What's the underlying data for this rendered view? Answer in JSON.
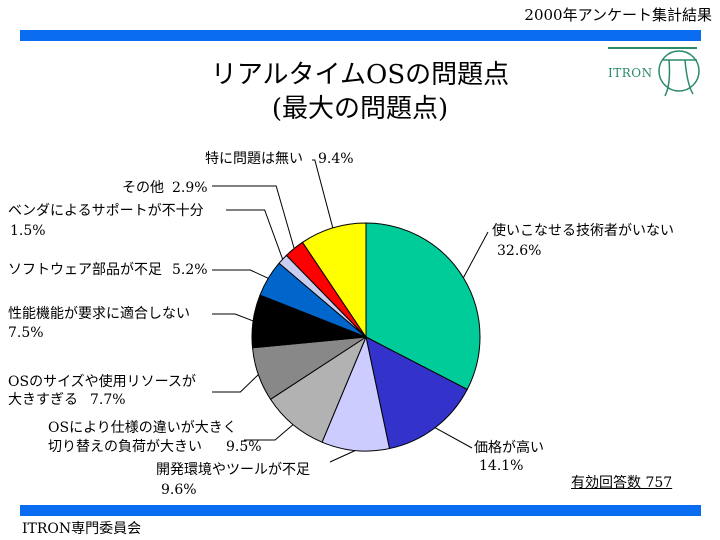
{
  "header": {
    "survey_title": "2000年アンケート集計結果"
  },
  "title": {
    "line1": "リアルタイムOSの問題点",
    "line2": "(最大の問題点)"
  },
  "logo": {
    "text": "ITRON"
  },
  "footer": {
    "committee": "ITRON専門委員会"
  },
  "valid_responses": "有効回答数 757",
  "colors": {
    "bars": "#0a6cf0",
    "logo": "#2a8a6a"
  },
  "chart_data": {
    "type": "pie",
    "start": "12 o'clock",
    "direction": "clockwise",
    "slices": [
      {
        "label": "使いこなせる技術者がいない",
        "value": 32.6,
        "value_text": "32.6%",
        "color": "#00cc99"
      },
      {
        "label": "価格が高い",
        "value": 14.1,
        "value_text": "14.1%",
        "color": "#3333cc"
      },
      {
        "label": "開発環境やツールが不足",
        "value": 9.6,
        "value_text": "9.6%",
        "color": "#ccccff"
      },
      {
        "label": "OSにより仕様の違いが大きく切り替えの負荷が大きい",
        "value": 9.5,
        "value_text": "9.5%",
        "color": "#b2b2b2"
      },
      {
        "label": "OSのサイズや使用リソースが大きすぎる",
        "value": 7.7,
        "value_text": "7.7%",
        "color": "#888888"
      },
      {
        "label": "性能機能が要求に適合しない",
        "value": 7.5,
        "value_text": "7.5%",
        "color": "#000000"
      },
      {
        "label": "ソフトウェア部品が不足",
        "value": 5.2,
        "value_text": "5.2%",
        "color": "#0066cc"
      },
      {
        "label": "ベンダによるサポートが不十分",
        "value": 1.5,
        "value_text": "1.5%",
        "color": "#c9cdf0"
      },
      {
        "label": "その他",
        "value": 2.9,
        "value_text": "2.9%",
        "color": "#ff0000"
      },
      {
        "label": "特に問題は無い",
        "value": 9.4,
        "value_text": "9.4%",
        "color": "#ffff00"
      }
    ]
  }
}
